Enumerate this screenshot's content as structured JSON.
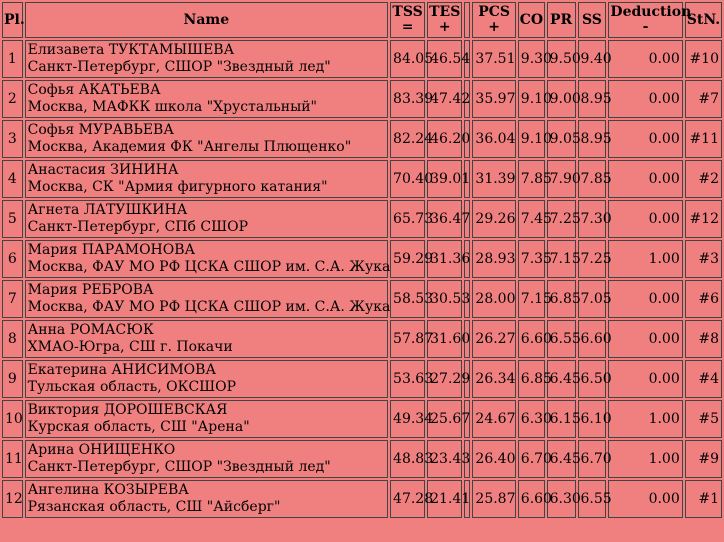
{
  "header": {
    "pl": "Pl.",
    "name": "Name",
    "tss": [
      "TSS",
      "="
    ],
    "tes": [
      "TES",
      "+"
    ],
    "pcs": [
      "PCS",
      "+"
    ],
    "co": "CO",
    "pr": "PR",
    "ss": "SS",
    "deduction": [
      "Deduction",
      "-"
    ],
    "stn": "StN."
  },
  "rows": [
    {
      "pl": "1",
      "name": "Елизавета ТУКТАМЫШЕВА",
      "club": "Санкт-Петербург, СШОР \"Звездный лед\"",
      "tss": "84.05",
      "tes": "46.54",
      "pcs": "37.51",
      "co": "9.30",
      "pr": "9.50",
      "ss": "9.40",
      "ded": "0.00",
      "stn": "#10"
    },
    {
      "pl": "2",
      "name": "Софья АКАТЬЕВА",
      "club": "Москва, МАФКК школа \"Хрустальный\"",
      "tss": "83.39",
      "tes": "47.42",
      "pcs": "35.97",
      "co": "9.10",
      "pr": "9.00",
      "ss": "8.95",
      "ded": "0.00",
      "stn": "#7"
    },
    {
      "pl": "3",
      "name": "Софья МУРАВЬЕВА",
      "club": "Москва, Академия ФК \"Ангелы Плющенко\"",
      "tss": "82.24",
      "tes": "46.20",
      "pcs": "36.04",
      "co": "9.10",
      "pr": "9.05",
      "ss": "8.95",
      "ded": "0.00",
      "stn": "#11"
    },
    {
      "pl": "4",
      "name": "Анастасия ЗИНИНА",
      "club": "Москва, СК \"Армия фигурного катания\"",
      "tss": "70.40",
      "tes": "39.01",
      "pcs": "31.39",
      "co": "7.85",
      "pr": "7.90",
      "ss": "7.85",
      "ded": "0.00",
      "stn": "#2"
    },
    {
      "pl": "5",
      "name": "Агнета ЛАТУШКИНА",
      "club": "Санкт-Петербург, СПб СШОР",
      "tss": "65.73",
      "tes": "36.47",
      "pcs": "29.26",
      "co": "7.45",
      "pr": "7.25",
      "ss": "7.30",
      "ded": "0.00",
      "stn": "#12"
    },
    {
      "pl": "6",
      "name": "Мария ПАРАМОНОВА",
      "club": "Москва, ФАУ МО РФ ЦСКА СШОР им. С.А. Жука",
      "tss": "59.29",
      "tes": "31.36",
      "pcs": "28.93",
      "co": "7.35",
      "pr": "7.15",
      "ss": "7.25",
      "ded": "1.00",
      "stn": "#3"
    },
    {
      "pl": "7",
      "name": "Мария РЕБРОВА",
      "club": "Москва, ФАУ МО РФ ЦСКА СШОР им. С.А. Жука",
      "tss": "58.53",
      "tes": "30.53",
      "pcs": "28.00",
      "co": "7.15",
      "pr": "6.85",
      "ss": "7.05",
      "ded": "0.00",
      "stn": "#6"
    },
    {
      "pl": "8",
      "name": "Анна РОМАСЮК",
      "club": "ХМАО-Югра, СШ г. Покачи",
      "tss": "57.87",
      "tes": "31.60",
      "pcs": "26.27",
      "co": "6.60",
      "pr": "6.55",
      "ss": "6.60",
      "ded": "0.00",
      "stn": "#8"
    },
    {
      "pl": "9",
      "name": "Екатерина АНИСИМОВА",
      "club": "Тульская область, ОКСШОР",
      "tss": "53.63",
      "tes": "27.29",
      "pcs": "26.34",
      "co": "6.85",
      "pr": "6.45",
      "ss": "6.50",
      "ded": "0.00",
      "stn": "#4"
    },
    {
      "pl": "10",
      "name": "Виктория ДОРОШЕВСКАЯ",
      "club": "Курская область, СШ \"Арена\"",
      "tss": "49.34",
      "tes": "25.67",
      "pcs": "24.67",
      "co": "6.30",
      "pr": "6.15",
      "ss": "6.10",
      "ded": "1.00",
      "stn": "#5"
    },
    {
      "pl": "11",
      "name": "Арина ОНИЩЕНКО",
      "club": "Санкт-Петербург, СШОР \"Звездный лед\"",
      "tss": "48.83",
      "tes": "23.43",
      "pcs": "26.40",
      "co": "6.70",
      "pr": "6.45",
      "ss": "6.70",
      "ded": "1.00",
      "stn": "#9"
    },
    {
      "pl": "12",
      "name": "Ангелина КОЗЫРЕВА",
      "club": "Рязанская область, СШ \"Айсберг\"",
      "tss": "47.28",
      "tes": "21.41",
      "pcs": "25.87",
      "co": "6.60",
      "pr": "6.30",
      "ss": "6.55",
      "ded": "0.00",
      "stn": "#1"
    }
  ]
}
